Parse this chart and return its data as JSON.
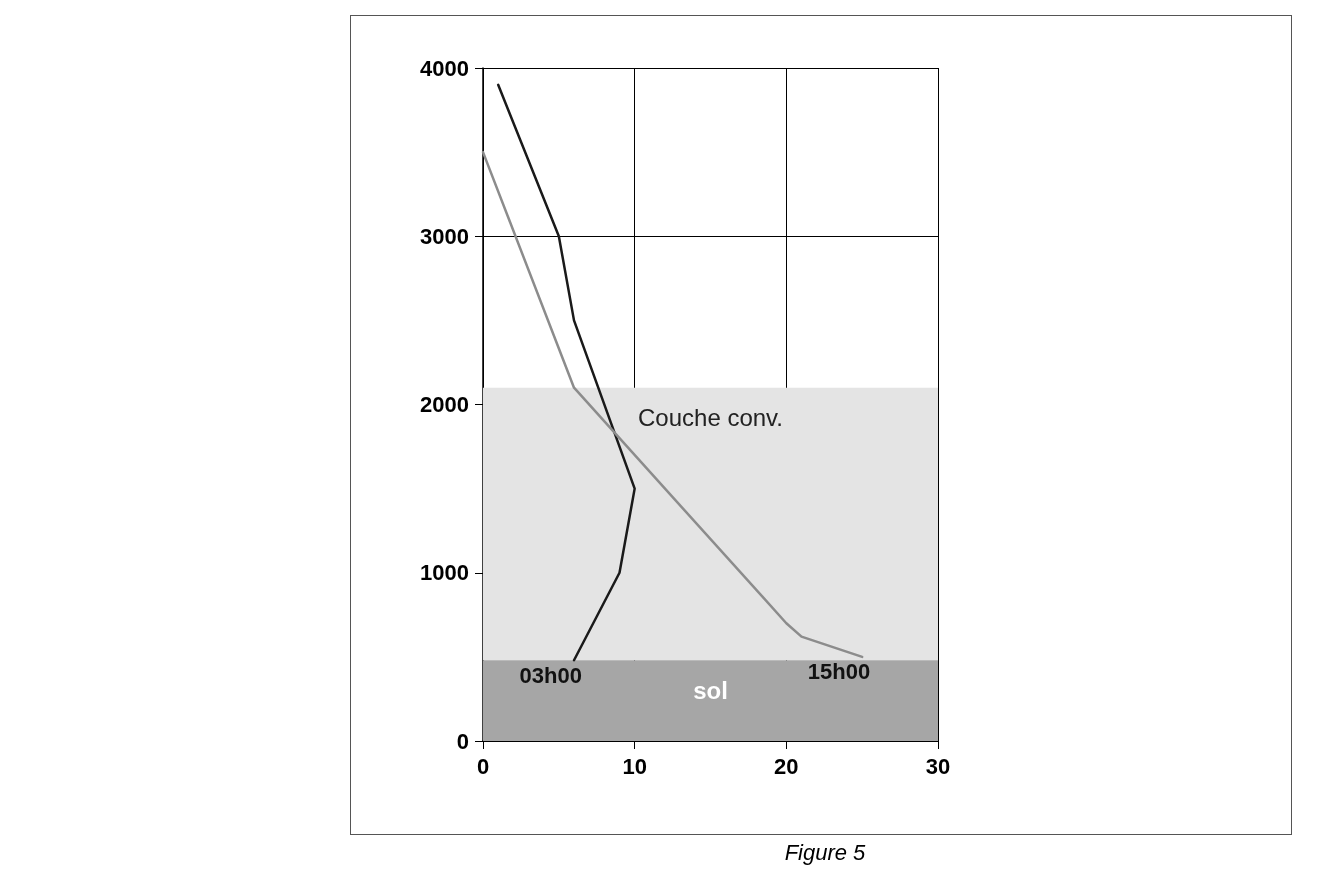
{
  "chart_data": {
    "type": "line",
    "title": "Figure 5",
    "xlim": [
      0,
      30
    ],
    "xticks": [
      0,
      10,
      20,
      30
    ],
    "ylim": [
      0,
      4000
    ],
    "yticks": [
      0,
      1000,
      2000,
      3000,
      4000
    ],
    "grid": true,
    "legend": false,
    "marker": "none",
    "line_style": "solid",
    "series": [
      {
        "name": "03h00",
        "color": "#1a1a1a",
        "x": [
          1,
          5,
          6,
          10,
          9,
          6
        ],
        "values": [
          3900,
          3000,
          2500,
          1500,
          1000,
          480
        ]
      },
      {
        "name": "15h00",
        "color": "#8c8c8c",
        "x": [
          0,
          6,
          20,
          21,
          25
        ],
        "values": [
          3500,
          2100,
          700,
          620,
          500
        ]
      }
    ],
    "bands": [
      {
        "axis": "y",
        "from": 480,
        "to": 2100,
        "label": "Couche conv.",
        "color": "#e4e4e4"
      },
      {
        "axis": "y",
        "from": 0,
        "to": 480,
        "label": "sol",
        "color": "#a6a6a6"
      }
    ]
  }
}
